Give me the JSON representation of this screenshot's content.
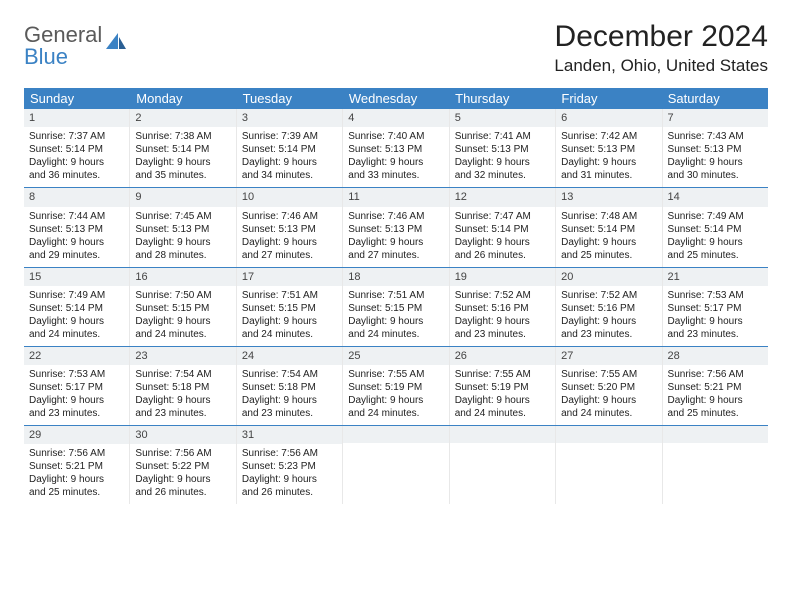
{
  "logo": {
    "line1": "General",
    "line2": "Blue"
  },
  "title": "December 2024",
  "location": "Landen, Ohio, United States",
  "colors": {
    "header_bg": "#3b82c4",
    "header_text": "#ffffff",
    "daynum_bg": "#eef1f3",
    "divider": "#3b82c4",
    "cell_border": "#e8e8e8",
    "text": "#222222",
    "logo_gray": "#5a5a5a",
    "logo_blue": "#3b82c4"
  },
  "dow": [
    "Sunday",
    "Monday",
    "Tuesday",
    "Wednesday",
    "Thursday",
    "Friday",
    "Saturday"
  ],
  "weeks": [
    [
      {
        "n": "1",
        "sr": "Sunrise: 7:37 AM",
        "ss": "Sunset: 5:14 PM",
        "d1": "Daylight: 9 hours",
        "d2": "and 36 minutes."
      },
      {
        "n": "2",
        "sr": "Sunrise: 7:38 AM",
        "ss": "Sunset: 5:14 PM",
        "d1": "Daylight: 9 hours",
        "d2": "and 35 minutes."
      },
      {
        "n": "3",
        "sr": "Sunrise: 7:39 AM",
        "ss": "Sunset: 5:14 PM",
        "d1": "Daylight: 9 hours",
        "d2": "and 34 minutes."
      },
      {
        "n": "4",
        "sr": "Sunrise: 7:40 AM",
        "ss": "Sunset: 5:13 PM",
        "d1": "Daylight: 9 hours",
        "d2": "and 33 minutes."
      },
      {
        "n": "5",
        "sr": "Sunrise: 7:41 AM",
        "ss": "Sunset: 5:13 PM",
        "d1": "Daylight: 9 hours",
        "d2": "and 32 minutes."
      },
      {
        "n": "6",
        "sr": "Sunrise: 7:42 AM",
        "ss": "Sunset: 5:13 PM",
        "d1": "Daylight: 9 hours",
        "d2": "and 31 minutes."
      },
      {
        "n": "7",
        "sr": "Sunrise: 7:43 AM",
        "ss": "Sunset: 5:13 PM",
        "d1": "Daylight: 9 hours",
        "d2": "and 30 minutes."
      }
    ],
    [
      {
        "n": "8",
        "sr": "Sunrise: 7:44 AM",
        "ss": "Sunset: 5:13 PM",
        "d1": "Daylight: 9 hours",
        "d2": "and 29 minutes."
      },
      {
        "n": "9",
        "sr": "Sunrise: 7:45 AM",
        "ss": "Sunset: 5:13 PM",
        "d1": "Daylight: 9 hours",
        "d2": "and 28 minutes."
      },
      {
        "n": "10",
        "sr": "Sunrise: 7:46 AM",
        "ss": "Sunset: 5:13 PM",
        "d1": "Daylight: 9 hours",
        "d2": "and 27 minutes."
      },
      {
        "n": "11",
        "sr": "Sunrise: 7:46 AM",
        "ss": "Sunset: 5:13 PM",
        "d1": "Daylight: 9 hours",
        "d2": "and 27 minutes."
      },
      {
        "n": "12",
        "sr": "Sunrise: 7:47 AM",
        "ss": "Sunset: 5:14 PM",
        "d1": "Daylight: 9 hours",
        "d2": "and 26 minutes."
      },
      {
        "n": "13",
        "sr": "Sunrise: 7:48 AM",
        "ss": "Sunset: 5:14 PM",
        "d1": "Daylight: 9 hours",
        "d2": "and 25 minutes."
      },
      {
        "n": "14",
        "sr": "Sunrise: 7:49 AM",
        "ss": "Sunset: 5:14 PM",
        "d1": "Daylight: 9 hours",
        "d2": "and 25 minutes."
      }
    ],
    [
      {
        "n": "15",
        "sr": "Sunrise: 7:49 AM",
        "ss": "Sunset: 5:14 PM",
        "d1": "Daylight: 9 hours",
        "d2": "and 24 minutes."
      },
      {
        "n": "16",
        "sr": "Sunrise: 7:50 AM",
        "ss": "Sunset: 5:15 PM",
        "d1": "Daylight: 9 hours",
        "d2": "and 24 minutes."
      },
      {
        "n": "17",
        "sr": "Sunrise: 7:51 AM",
        "ss": "Sunset: 5:15 PM",
        "d1": "Daylight: 9 hours",
        "d2": "and 24 minutes."
      },
      {
        "n": "18",
        "sr": "Sunrise: 7:51 AM",
        "ss": "Sunset: 5:15 PM",
        "d1": "Daylight: 9 hours",
        "d2": "and 24 minutes."
      },
      {
        "n": "19",
        "sr": "Sunrise: 7:52 AM",
        "ss": "Sunset: 5:16 PM",
        "d1": "Daylight: 9 hours",
        "d2": "and 23 minutes."
      },
      {
        "n": "20",
        "sr": "Sunrise: 7:52 AM",
        "ss": "Sunset: 5:16 PM",
        "d1": "Daylight: 9 hours",
        "d2": "and 23 minutes."
      },
      {
        "n": "21",
        "sr": "Sunrise: 7:53 AM",
        "ss": "Sunset: 5:17 PM",
        "d1": "Daylight: 9 hours",
        "d2": "and 23 minutes."
      }
    ],
    [
      {
        "n": "22",
        "sr": "Sunrise: 7:53 AM",
        "ss": "Sunset: 5:17 PM",
        "d1": "Daylight: 9 hours",
        "d2": "and 23 minutes."
      },
      {
        "n": "23",
        "sr": "Sunrise: 7:54 AM",
        "ss": "Sunset: 5:18 PM",
        "d1": "Daylight: 9 hours",
        "d2": "and 23 minutes."
      },
      {
        "n": "24",
        "sr": "Sunrise: 7:54 AM",
        "ss": "Sunset: 5:18 PM",
        "d1": "Daylight: 9 hours",
        "d2": "and 23 minutes."
      },
      {
        "n": "25",
        "sr": "Sunrise: 7:55 AM",
        "ss": "Sunset: 5:19 PM",
        "d1": "Daylight: 9 hours",
        "d2": "and 24 minutes."
      },
      {
        "n": "26",
        "sr": "Sunrise: 7:55 AM",
        "ss": "Sunset: 5:19 PM",
        "d1": "Daylight: 9 hours",
        "d2": "and 24 minutes."
      },
      {
        "n": "27",
        "sr": "Sunrise: 7:55 AM",
        "ss": "Sunset: 5:20 PM",
        "d1": "Daylight: 9 hours",
        "d2": "and 24 minutes."
      },
      {
        "n": "28",
        "sr": "Sunrise: 7:56 AM",
        "ss": "Sunset: 5:21 PM",
        "d1": "Daylight: 9 hours",
        "d2": "and 25 minutes."
      }
    ],
    [
      {
        "n": "29",
        "sr": "Sunrise: 7:56 AM",
        "ss": "Sunset: 5:21 PM",
        "d1": "Daylight: 9 hours",
        "d2": "and 25 minutes."
      },
      {
        "n": "30",
        "sr": "Sunrise: 7:56 AM",
        "ss": "Sunset: 5:22 PM",
        "d1": "Daylight: 9 hours",
        "d2": "and 26 minutes."
      },
      {
        "n": "31",
        "sr": "Sunrise: 7:56 AM",
        "ss": "Sunset: 5:23 PM",
        "d1": "Daylight: 9 hours",
        "d2": "and 26 minutes."
      },
      {
        "empty": true
      },
      {
        "empty": true
      },
      {
        "empty": true
      },
      {
        "empty": true
      }
    ]
  ]
}
